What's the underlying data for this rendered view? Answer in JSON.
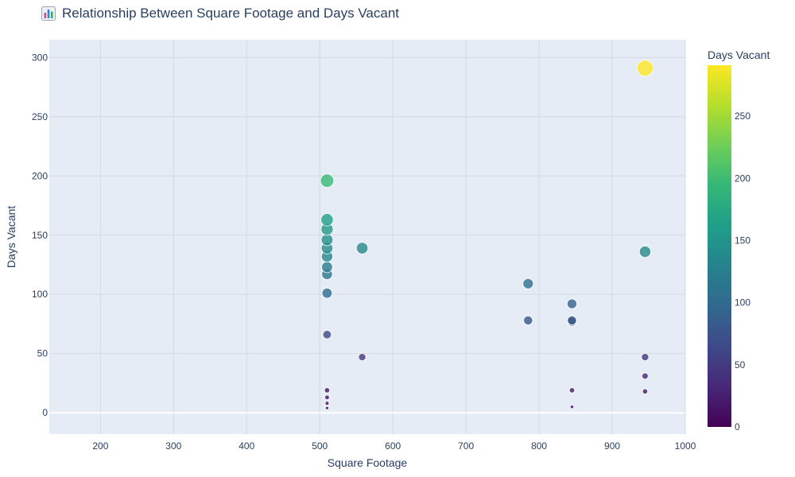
{
  "title": "Relationship Between Square Footage and Days Vacant",
  "title_icon": "bar-chart-emoji-icon",
  "colors": {
    "plot_bg": "#e5ecf6",
    "grid": "#d3d9e3",
    "zero_line": "#ffffff",
    "text": "#2a3f5f",
    "colorscale": [
      "#440154",
      "#482878",
      "#3e4989",
      "#31688e",
      "#26828e",
      "#1f9e89",
      "#35b779",
      "#6ece58",
      "#b5de2b",
      "#fde725"
    ]
  },
  "chart_data": {
    "type": "scatter",
    "title": "Relationship Between Square Footage and Days Vacant",
    "xlabel": "Square Footage",
    "ylabel": "Days Vacant",
    "xlim": [
      130,
      1000
    ],
    "ylim": [
      -18,
      315
    ],
    "xticks": [
      200,
      300,
      400,
      500,
      600,
      700,
      800,
      900,
      1000
    ],
    "yticks": [
      0,
      50,
      100,
      150,
      200,
      250,
      300
    ],
    "grid": true,
    "marker_size_encodes": "Days Vacant",
    "marker_color_encodes": "Days Vacant",
    "colorbar": {
      "title": "Days Vacant",
      "range": [
        0,
        291
      ],
      "ticks": [
        0,
        50,
        100,
        150,
        200,
        250
      ],
      "colorscale": "Viridis"
    },
    "points": [
      {
        "x": 510,
        "y": 196
      },
      {
        "x": 510,
        "y": 163
      },
      {
        "x": 510,
        "y": 155
      },
      {
        "x": 510,
        "y": 146
      },
      {
        "x": 510,
        "y": 139
      },
      {
        "x": 510,
        "y": 132
      },
      {
        "x": 510,
        "y": 123
      },
      {
        "x": 510,
        "y": 117
      },
      {
        "x": 510,
        "y": 101
      },
      {
        "x": 510,
        "y": 66
      },
      {
        "x": 510,
        "y": 19
      },
      {
        "x": 510,
        "y": 13
      },
      {
        "x": 510,
        "y": 8
      },
      {
        "x": 510,
        "y": 4
      },
      {
        "x": 558,
        "y": 139
      },
      {
        "x": 558,
        "y": 47
      },
      {
        "x": 785,
        "y": 109
      },
      {
        "x": 785,
        "y": 78
      },
      {
        "x": 845,
        "y": 92
      },
      {
        "x": 845,
        "y": 78
      },
      {
        "x": 845,
        "y": 77
      },
      {
        "x": 845,
        "y": 19
      },
      {
        "x": 845,
        "y": 5
      },
      {
        "x": 945,
        "y": 291
      },
      {
        "x": 945,
        "y": 136
      },
      {
        "x": 945,
        "y": 47
      },
      {
        "x": 945,
        "y": 31
      },
      {
        "x": 945,
        "y": 18
      }
    ]
  }
}
